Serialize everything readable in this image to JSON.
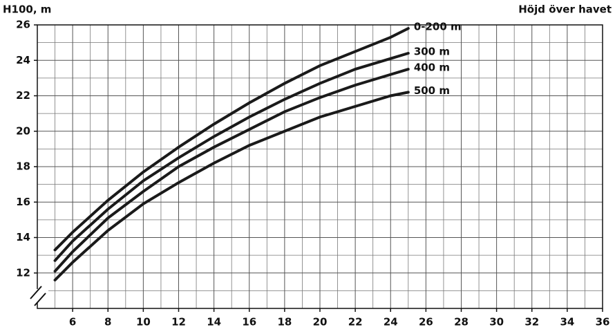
{
  "chart_data": {
    "type": "line",
    "title": "Höjd över havet",
    "y_label": "H100, m",
    "x": [
      5,
      6,
      8,
      10,
      12,
      14,
      16,
      18,
      20,
      22,
      24,
      25
    ],
    "series": [
      {
        "name": "0-200 m",
        "color": "#1a1a1a",
        "values": [
          13.3,
          14.3,
          16.1,
          17.7,
          19.1,
          20.4,
          21.6,
          22.7,
          23.7,
          24.5,
          25.3,
          25.8
        ]
      },
      {
        "name": "300 m",
        "color": "#1a1a1a",
        "values": [
          12.7,
          13.8,
          15.6,
          17.2,
          18.5,
          19.7,
          20.8,
          21.8,
          22.7,
          23.5,
          24.1,
          24.4
        ]
      },
      {
        "name": "400 m",
        "color": "#1a1a1a",
        "values": [
          12.1,
          13.2,
          15.1,
          16.6,
          18.0,
          19.1,
          20.1,
          21.1,
          21.9,
          22.6,
          23.2,
          23.5
        ]
      },
      {
        "name": "500 m",
        "color": "#1a1a1a",
        "values": [
          11.6,
          12.6,
          14.4,
          15.9,
          17.1,
          18.2,
          19.2,
          20.0,
          20.8,
          21.4,
          22.0,
          22.2
        ]
      }
    ],
    "xlim": [
      4,
      36
    ],
    "xticks": [
      6,
      8,
      10,
      12,
      14,
      16,
      18,
      20,
      22,
      24,
      26,
      28,
      30,
      32,
      34,
      36
    ],
    "ylim": [
      10,
      26
    ],
    "yticks": [
      12,
      14,
      16,
      18,
      20,
      22,
      24,
      26
    ],
    "grid": true
  }
}
